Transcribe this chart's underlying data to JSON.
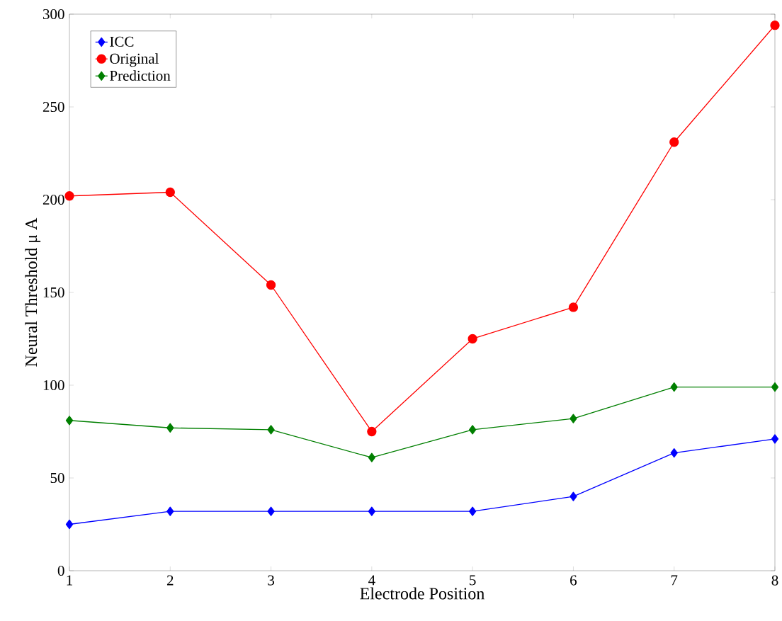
{
  "chart_data": {
    "type": "line",
    "xlabel": "Electrode Position",
    "ylabel": "Neural Threshold  μ A",
    "x": [
      1,
      2,
      3,
      4,
      5,
      6,
      7,
      8
    ],
    "xlim": [
      1,
      8
    ],
    "xticks": [
      1,
      2,
      3,
      4,
      5,
      6,
      7,
      8
    ],
    "ylim": [
      0,
      300
    ],
    "yticks": [
      0,
      50,
      100,
      150,
      200,
      250,
      300
    ],
    "grid": false,
    "legend": "top left",
    "line_style": "solid",
    "series": [
      {
        "name": "ICC",
        "color": "#0000ff",
        "marker": "diamond",
        "values": [
          25,
          32,
          32,
          32,
          32,
          40,
          63.5,
          71
        ]
      },
      {
        "name": "Original",
        "color": "#ff0000",
        "marker": "circle",
        "values": [
          202,
          204,
          154,
          75,
          125,
          142,
          231,
          294
        ]
      },
      {
        "name": "Prediction",
        "color": "#007f00",
        "marker": "diamond",
        "values": [
          81,
          77,
          76,
          61,
          76,
          82,
          99,
          99
        ]
      }
    ]
  }
}
